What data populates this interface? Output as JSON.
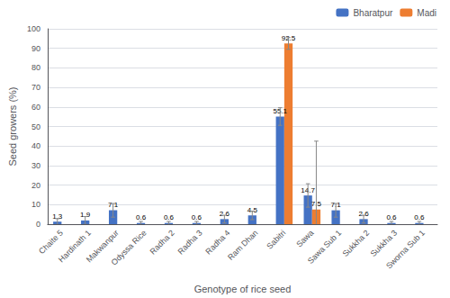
{
  "chart_data": {
    "type": "bar",
    "xlabel": "Genotype of rice seed",
    "ylabel": "Seed growers (%)",
    "categories": [
      "Chaite 5",
      "Hardinath 1",
      "Makwanpur",
      "Odyssa Rice",
      "Radha 2",
      "Radha 3",
      "Radha 4",
      "Ram Dhan",
      "Sabitri",
      "Sawa",
      "Sawa Sub 1",
      "Sukkha 2",
      "Sukkha 3",
      "Sworna Sub 1"
    ],
    "series": [
      {
        "name": "Bharatpur",
        "color": "#4472c4",
        "values": [
          1.3,
          1.9,
          7.1,
          0.6,
          0.6,
          0.6,
          2.6,
          4.5,
          55.1,
          14.7,
          7.1,
          2.6,
          0.6,
          0.6
        ],
        "errors": [
          1.5,
          2.0,
          3.5,
          0.8,
          0.8,
          0.8,
          2.0,
          2.2,
          4.5,
          6.0,
          3.5,
          2.0,
          0.8,
          0.8
        ]
      },
      {
        "name": "Madi",
        "color": "#ed7d31",
        "values": [
          0,
          0,
          0,
          0,
          0,
          0,
          0,
          0,
          92.5,
          7.5,
          0,
          0,
          0,
          0
        ],
        "value_labels": [
          null,
          null,
          null,
          null,
          null,
          null,
          null,
          null,
          "92.5",
          "7.5",
          null,
          null,
          null,
          null
        ],
        "errors": [
          0,
          0,
          0,
          0,
          0,
          0,
          0,
          0,
          3.0,
          35.0,
          0,
          0,
          0,
          0
        ]
      }
    ],
    "ylim": [
      0,
      100
    ],
    "yticks": [
      0,
      10,
      20,
      30,
      40,
      50,
      60,
      70,
      80,
      90,
      100
    ],
    "grid": true,
    "legend": "upper right",
    "data_labels": true
  }
}
